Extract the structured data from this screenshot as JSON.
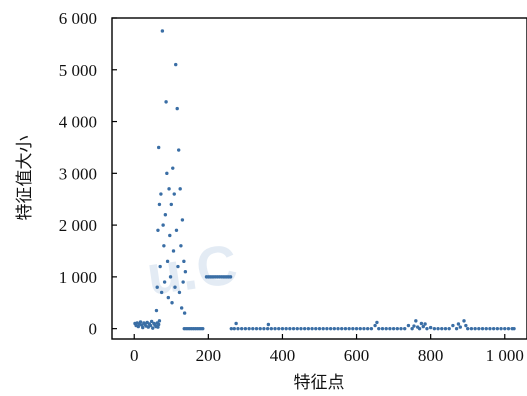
{
  "chart_data": {
    "type": "scatter",
    "xlabel": "特征点",
    "ylabel": "特征值大小",
    "xlim": [
      -60,
      1060
    ],
    "ylim": [
      -200,
      6000
    ],
    "xticks": [
      0,
      200,
      400,
      600,
      800,
      1000
    ],
    "xtick_labels": [
      "0",
      "200",
      "400",
      "600",
      "800",
      "1 000"
    ],
    "yticks": [
      0,
      1000,
      2000,
      3000,
      4000,
      5000,
      6000
    ],
    "ytick_labels": [
      "0",
      "1 000",
      "2 000",
      "3 000",
      "4 000",
      "5 000",
      "6 000"
    ],
    "grid": false,
    "marker_color": "#3a6ea5",
    "series": [
      {
        "points": [
          [
            2,
            100
          ],
          [
            5,
            60
          ],
          [
            8,
            110
          ],
          [
            11,
            40
          ],
          [
            14,
            90
          ],
          [
            17,
            130
          ],
          [
            20,
            70
          ],
          [
            23,
            20
          ],
          [
            26,
            110
          ],
          [
            29,
            80
          ],
          [
            32,
            50
          ],
          [
            35,
            120
          ],
          [
            38,
            30
          ],
          [
            41,
            90
          ],
          [
            44,
            60
          ],
          [
            47,
            140
          ],
          [
            50,
            10
          ],
          [
            53,
            100
          ],
          [
            56,
            70
          ],
          [
            59,
            40
          ],
          [
            62,
            110
          ],
          [
            64,
            30
          ],
          [
            66,
            80
          ],
          [
            68,
            150
          ],
          [
            60,
            350
          ],
          [
            62,
            800
          ],
          [
            64,
            1900
          ],
          [
            66,
            3500
          ],
          [
            68,
            2400
          ],
          [
            70,
            1200
          ],
          [
            72,
            2600
          ],
          [
            74,
            700
          ],
          [
            76,
            5750
          ],
          [
            78,
            2000
          ],
          [
            80,
            1600
          ],
          [
            82,
            900
          ],
          [
            84,
            2200
          ],
          [
            86,
            4380
          ],
          [
            88,
            3000
          ],
          [
            90,
            1300
          ],
          [
            92,
            600
          ],
          [
            94,
            2700
          ],
          [
            96,
            1800
          ],
          [
            98,
            1000
          ],
          [
            100,
            2400
          ],
          [
            102,
            500
          ],
          [
            104,
            3100
          ],
          [
            106,
            1500
          ],
          [
            108,
            2600
          ],
          [
            110,
            800
          ],
          [
            112,
            5100
          ],
          [
            114,
            1900
          ],
          [
            116,
            4250
          ],
          [
            118,
            1200
          ],
          [
            120,
            3450
          ],
          [
            122,
            700
          ],
          [
            124,
            2700
          ],
          [
            126,
            1600
          ],
          [
            128,
            400
          ],
          [
            130,
            2100
          ],
          [
            132,
            900
          ],
          [
            134,
            1300
          ],
          [
            136,
            300
          ],
          [
            138,
            1100
          ],
          [
            135,
            0
          ],
          [
            140,
            0
          ],
          [
            145,
            0
          ],
          [
            150,
            0
          ],
          [
            155,
            0
          ],
          [
            160,
            0
          ],
          [
            165,
            0
          ],
          [
            170,
            0
          ],
          [
            175,
            0
          ],
          [
            180,
            0
          ],
          [
            185,
            0
          ],
          [
            195,
            1000
          ],
          [
            200,
            1000
          ],
          [
            205,
            1000
          ],
          [
            210,
            1000
          ],
          [
            215,
            1000
          ],
          [
            220,
            1000
          ],
          [
            225,
            1000
          ],
          [
            230,
            1000
          ],
          [
            235,
            1000
          ],
          [
            240,
            1000
          ],
          [
            245,
            1000
          ],
          [
            250,
            1000
          ],
          [
            255,
            1000
          ],
          [
            260,
            1000
          ],
          [
            262,
            0
          ],
          [
            270,
            0
          ],
          [
            275,
            100
          ],
          [
            280,
            0
          ],
          [
            290,
            0
          ],
          [
            300,
            0
          ],
          [
            310,
            0
          ],
          [
            320,
            0
          ],
          [
            330,
            0
          ],
          [
            340,
            0
          ],
          [
            350,
            0
          ],
          [
            360,
            0
          ],
          [
            362,
            80
          ],
          [
            370,
            0
          ],
          [
            380,
            0
          ],
          [
            390,
            0
          ],
          [
            400,
            0
          ],
          [
            410,
            0
          ],
          [
            420,
            0
          ],
          [
            430,
            0
          ],
          [
            440,
            0
          ],
          [
            450,
            0
          ],
          [
            460,
            0
          ],
          [
            470,
            0
          ],
          [
            480,
            0
          ],
          [
            490,
            0
          ],
          [
            500,
            0
          ],
          [
            510,
            0
          ],
          [
            520,
            0
          ],
          [
            530,
            0
          ],
          [
            540,
            0
          ],
          [
            550,
            0
          ],
          [
            560,
            0
          ],
          [
            570,
            0
          ],
          [
            580,
            0
          ],
          [
            590,
            0
          ],
          [
            600,
            0
          ],
          [
            610,
            0
          ],
          [
            620,
            0
          ],
          [
            630,
            0
          ],
          [
            640,
            0
          ],
          [
            650,
            60
          ],
          [
            655,
            120
          ],
          [
            660,
            0
          ],
          [
            670,
            0
          ],
          [
            680,
            0
          ],
          [
            690,
            0
          ],
          [
            700,
            0
          ],
          [
            710,
            0
          ],
          [
            720,
            0
          ],
          [
            730,
            0
          ],
          [
            740,
            60
          ],
          [
            750,
            0
          ],
          [
            755,
            50
          ],
          [
            760,
            150
          ],
          [
            765,
            30
          ],
          [
            770,
            0
          ],
          [
            775,
            100
          ],
          [
            780,
            40
          ],
          [
            785,
            90
          ],
          [
            790,
            0
          ],
          [
            800,
            20
          ],
          [
            810,
            0
          ],
          [
            820,
            0
          ],
          [
            830,
            0
          ],
          [
            840,
            0
          ],
          [
            850,
            0
          ],
          [
            860,
            60
          ],
          [
            870,
            0
          ],
          [
            875,
            90
          ],
          [
            880,
            30
          ],
          [
            890,
            150
          ],
          [
            895,
            60
          ],
          [
            900,
            0
          ],
          [
            910,
            0
          ],
          [
            920,
            0
          ],
          [
            930,
            0
          ],
          [
            940,
            0
          ],
          [
            950,
            0
          ],
          [
            960,
            0
          ],
          [
            970,
            0
          ],
          [
            980,
            0
          ],
          [
            990,
            0
          ],
          [
            1000,
            0
          ],
          [
            1010,
            0
          ],
          [
            1020,
            0
          ],
          [
            1025,
            0
          ]
        ]
      }
    ]
  }
}
